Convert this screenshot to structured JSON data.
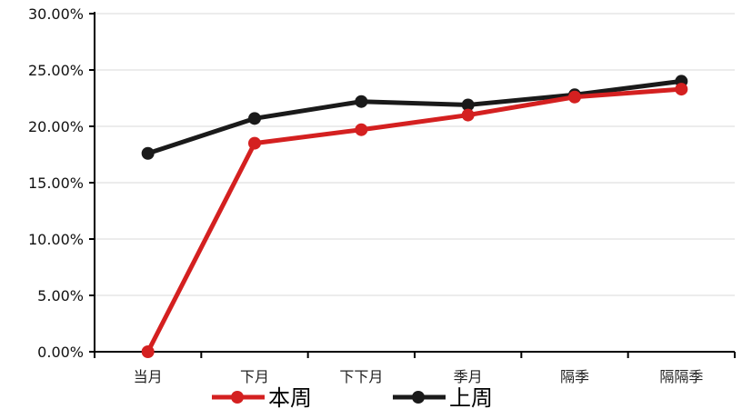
{
  "chart_data": {
    "type": "line",
    "title": "",
    "xlabel": "",
    "ylabel": "",
    "categories": [
      "当月",
      "下月",
      "下下月",
      "季月",
      "隔季",
      "隔隔季"
    ],
    "ylim": [
      0,
      30
    ],
    "yticks": [
      "0.00%",
      "5.00%",
      "10.00%",
      "15.00%",
      "20.00%",
      "25.00%",
      "30.00%"
    ],
    "grid": true,
    "legend_position": "bottom",
    "series": [
      {
        "name": "本周",
        "color": "#d42020",
        "values": [
          0.0,
          18.5,
          19.7,
          21.0,
          22.6,
          23.3
        ]
      },
      {
        "name": "上周",
        "color": "#1a1a1a",
        "values": [
          17.6,
          20.7,
          22.2,
          21.9,
          22.8,
          24.0
        ]
      }
    ]
  }
}
